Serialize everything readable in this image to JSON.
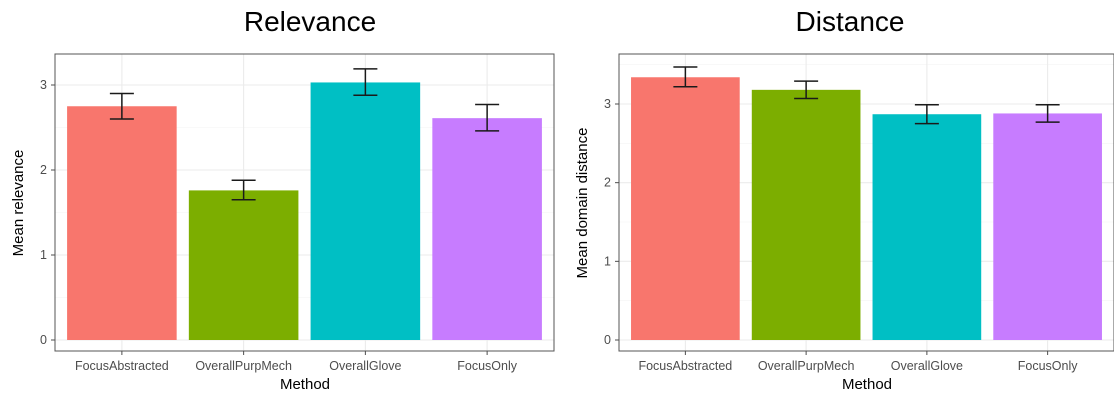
{
  "chart_data": [
    {
      "type": "bar",
      "title": "Relevance",
      "xlabel": "Method",
      "ylabel": "Mean relevance",
      "categories": [
        "FocusAbstracted",
        "OverallPurpMech",
        "OverallGlove",
        "FocusOnly"
      ],
      "values": [
        2.75,
        1.76,
        3.03,
        2.61
      ],
      "error": [
        [
          2.6,
          2.9
        ],
        [
          1.65,
          1.88
        ],
        [
          2.88,
          3.19
        ],
        [
          2.46,
          2.77
        ]
      ],
      "colors": [
        "#F8766D",
        "#7CAE00",
        "#00BFC4",
        "#C77CFF"
      ],
      "yticks": [
        0,
        1,
        2,
        3
      ],
      "ylim": [
        0,
        3.35
      ],
      "grid": true
    },
    {
      "type": "bar",
      "title": "Distance",
      "xlabel": "Method",
      "ylabel": "Mean domain distance",
      "categories": [
        "FocusAbstracted",
        "OverallPurpMech",
        "OverallGlove",
        "FocusOnly"
      ],
      "values": [
        3.34,
        3.18,
        2.87,
        2.88
      ],
      "error": [
        [
          3.22,
          3.47
        ],
        [
          3.07,
          3.29
        ],
        [
          2.75,
          2.99
        ],
        [
          2.77,
          2.99
        ]
      ],
      "colors": [
        "#F8766D",
        "#7CAE00",
        "#00BFC4",
        "#C77CFF"
      ],
      "yticks": [
        0,
        1,
        2,
        3
      ],
      "ylim": [
        0,
        3.6
      ],
      "grid": true
    }
  ]
}
